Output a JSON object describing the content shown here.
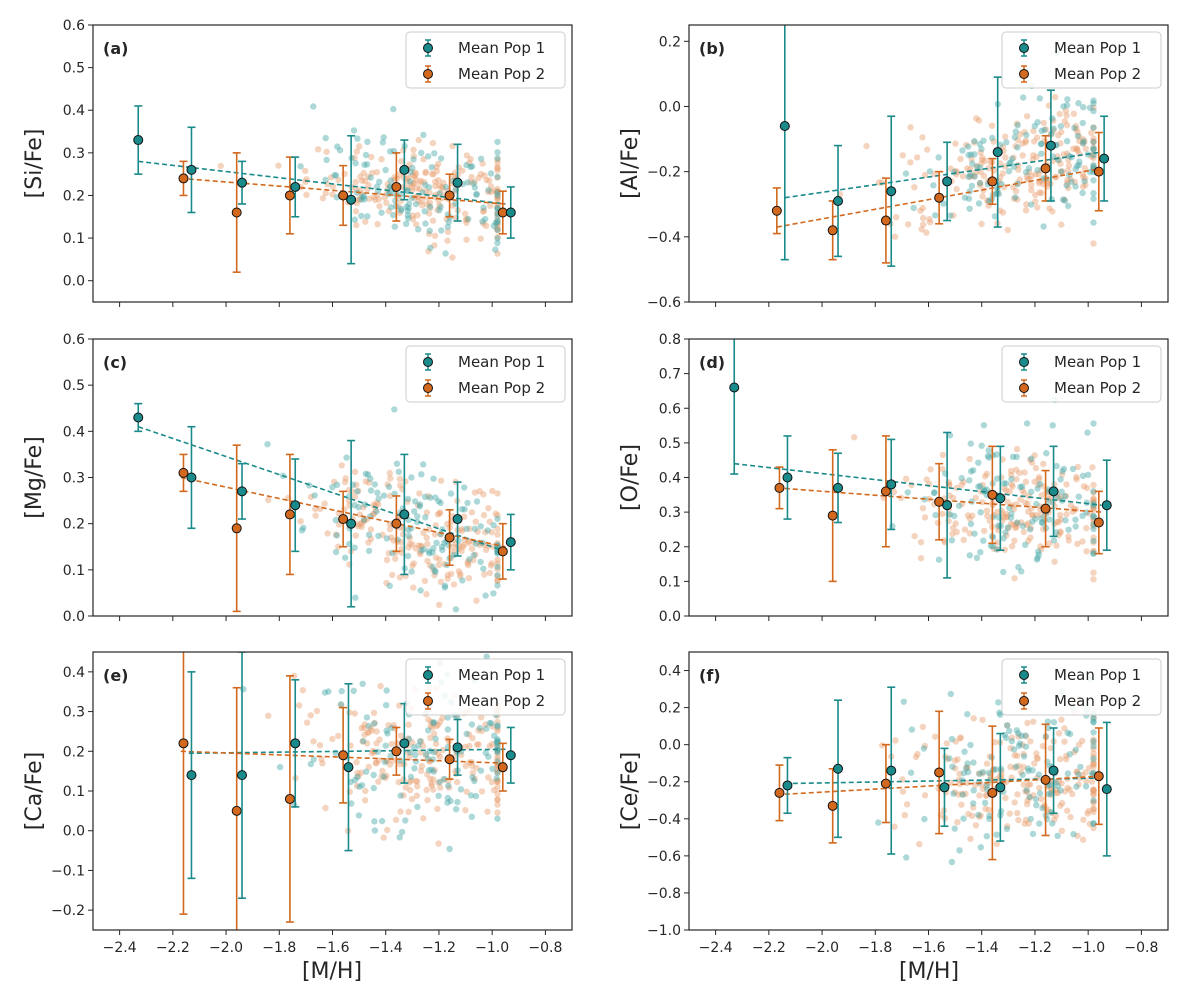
{
  "figure": {
    "xlabel": "[M/H]",
    "legend": [
      "Mean Pop 1",
      "Mean Pop 2"
    ],
    "colors": {
      "pop1": "#1a8a8a",
      "pop2": "#d2691e",
      "pop1_scatter": "#4aa8a8",
      "pop2_scatter": "#e8a070"
    }
  },
  "chart_data": [
    {
      "id": "a",
      "type": "scatter",
      "panel_tag": "(a)",
      "ylabel": "[Si/Fe]",
      "xlim": [
        -2.5,
        -0.7
      ],
      "ylim": [
        -0.05,
        0.6
      ],
      "xticks": [
        -2.4,
        -2.2,
        -2.0,
        -1.8,
        -1.6,
        -1.4,
        -1.2,
        -1.0,
        -0.8
      ],
      "yticks": [
        0.0,
        0.1,
        0.2,
        0.3,
        0.4,
        0.5,
        0.6
      ],
      "show_x_ticklabels": false,
      "legend_position": "top-right",
      "pop1": {
        "x": [
          -2.33,
          -2.13,
          -1.94,
          -1.74,
          -1.53,
          -1.33,
          -1.13,
          -0.93
        ],
        "y": [
          0.33,
          0.26,
          0.23,
          0.22,
          0.19,
          0.26,
          0.23,
          0.16
        ],
        "err": [
          0.08,
          0.1,
          0.05,
          0.07,
          0.15,
          0.07,
          0.09,
          0.06
        ]
      },
      "pop2": {
        "x": [
          -2.16,
          -1.96,
          -1.76,
          -1.56,
          -1.36,
          -1.16,
          -0.96
        ],
        "y": [
          0.24,
          0.16,
          0.2,
          0.2,
          0.22,
          0.2,
          0.16
        ],
        "err": [
          0.04,
          0.14,
          0.09,
          0.07,
          0.08,
          0.05,
          0.05
        ]
      },
      "trend1": {
        "x": [
          -2.33,
          -0.95
        ],
        "y": [
          0.28,
          0.18
        ]
      },
      "trend2": {
        "x": [
          -2.17,
          -0.95
        ],
        "y": [
          0.24,
          0.18
        ]
      },
      "scatter1": {
        "center": [
          0.24,
          0.0
        ],
        "slope": -0.07,
        "sd": 0.06
      },
      "scatter2": {
        "center": [
          0.23,
          0.0
        ],
        "slope": -0.05,
        "sd": 0.05
      }
    },
    {
      "id": "b",
      "type": "scatter",
      "panel_tag": "(b)",
      "ylabel": "[Al/Fe]",
      "xlim": [
        -2.5,
        -0.7
      ],
      "ylim": [
        -0.6,
        0.25
      ],
      "xticks": [
        -2.4,
        -2.2,
        -2.0,
        -1.8,
        -1.6,
        -1.4,
        -1.2,
        -1.0,
        -0.8
      ],
      "yticks": [
        -0.6,
        -0.4,
        -0.2,
        0.0,
        0.2
      ],
      "show_x_ticklabels": false,
      "legend_position": "top-right",
      "pop1": {
        "x": [
          -2.14,
          -1.94,
          -1.74,
          -1.53,
          -1.34,
          -1.14,
          -0.94
        ],
        "y": [
          -0.06,
          -0.29,
          -0.26,
          -0.23,
          -0.14,
          -0.12,
          -0.16
        ],
        "err": [
          0.41,
          0.17,
          0.23,
          0.12,
          0.23,
          0.17,
          0.13
        ]
      },
      "pop2": {
        "x": [
          -2.17,
          -1.96,
          -1.76,
          -1.56,
          -1.36,
          -1.16,
          -0.96
        ],
        "y": [
          -0.32,
          -0.38,
          -0.35,
          -0.28,
          -0.23,
          -0.19,
          -0.2
        ],
        "err": [
          0.07,
          0.09,
          0.13,
          0.08,
          0.07,
          0.1,
          0.12
        ]
      },
      "trend1": {
        "x": [
          -2.14,
          -0.95
        ],
        "y": [
          -0.28,
          -0.14
        ]
      },
      "trend2": {
        "x": [
          -2.17,
          -0.95
        ],
        "y": [
          -0.37,
          -0.19
        ]
      },
      "scatter1": {
        "center": [
          -0.22,
          0.0
        ],
        "slope": 0.12,
        "sd": 0.1
      },
      "scatter2": {
        "center": [
          -0.23,
          0.0
        ],
        "slope": 0.15,
        "sd": 0.08
      }
    },
    {
      "id": "c",
      "type": "scatter",
      "panel_tag": "(c)",
      "ylabel": "[Mg/Fe]",
      "xlim": [
        -2.5,
        -0.7
      ],
      "ylim": [
        0.0,
        0.6
      ],
      "xticks": [
        -2.4,
        -2.2,
        -2.0,
        -1.8,
        -1.6,
        -1.4,
        -1.2,
        -1.0,
        -0.8
      ],
      "yticks": [
        0.0,
        0.1,
        0.2,
        0.3,
        0.4,
        0.5,
        0.6
      ],
      "show_x_ticklabels": false,
      "legend_position": "top-right",
      "pop1": {
        "x": [
          -2.33,
          -2.13,
          -1.94,
          -1.74,
          -1.53,
          -1.33,
          -1.13,
          -0.93
        ],
        "y": [
          0.43,
          0.3,
          0.27,
          0.24,
          0.2,
          0.22,
          0.21,
          0.16
        ],
        "err": [
          0.03,
          0.11,
          0.06,
          0.1,
          0.18,
          0.13,
          0.08,
          0.06
        ]
      },
      "pop2": {
        "x": [
          -2.16,
          -1.96,
          -1.76,
          -1.56,
          -1.36,
          -1.16,
          -0.96
        ],
        "y": [
          0.31,
          0.19,
          0.22,
          0.21,
          0.2,
          0.17,
          0.14
        ],
        "err": [
          0.04,
          0.18,
          0.13,
          0.06,
          0.06,
          0.06,
          0.06
        ]
      },
      "trend1": {
        "x": [
          -2.33,
          -0.95
        ],
        "y": [
          0.41,
          0.14
        ]
      },
      "trend2": {
        "x": [
          -2.17,
          -0.95
        ],
        "y": [
          0.3,
          0.15
        ]
      },
      "scatter1": {
        "center": [
          0.24,
          0.0
        ],
        "slope": -0.15,
        "sd": 0.07
      },
      "scatter2": {
        "center": [
          0.22,
          0.0
        ],
        "slope": -0.12,
        "sd": 0.06
      }
    },
    {
      "id": "d",
      "type": "scatter",
      "panel_tag": "(d)",
      "ylabel": "[O/Fe]",
      "xlim": [
        -2.5,
        -0.7
      ],
      "ylim": [
        0.0,
        0.8
      ],
      "xticks": [
        -2.4,
        -2.2,
        -2.0,
        -1.8,
        -1.6,
        -1.4,
        -1.2,
        -1.0,
        -0.8
      ],
      "yticks": [
        0.0,
        0.1,
        0.2,
        0.3,
        0.4,
        0.5,
        0.6,
        0.7,
        0.8
      ],
      "show_x_ticklabels": false,
      "legend_position": "top-right",
      "pop1": {
        "x": [
          -2.33,
          -2.13,
          -1.94,
          -1.74,
          -1.53,
          -1.33,
          -1.13,
          -0.93
        ],
        "y": [
          0.66,
          0.4,
          0.37,
          0.38,
          0.32,
          0.34,
          0.36,
          0.32
        ],
        "err": [
          0.25,
          0.12,
          0.1,
          0.13,
          0.21,
          0.15,
          0.13,
          0.13
        ]
      },
      "pop2": {
        "x": [
          -2.16,
          -1.96,
          -1.76,
          -1.56,
          -1.36,
          -1.16,
          -0.96
        ],
        "y": [
          0.37,
          0.29,
          0.36,
          0.33,
          0.35,
          0.31,
          0.27
        ],
        "err": [
          0.06,
          0.19,
          0.16,
          0.11,
          0.14,
          0.11,
          0.09
        ]
      },
      "trend1": {
        "x": [
          -2.33,
          -0.95
        ],
        "y": [
          0.44,
          0.32
        ]
      },
      "trend2": {
        "x": [
          -2.17,
          -0.95
        ],
        "y": [
          0.37,
          0.3
        ]
      },
      "scatter1": {
        "center": [
          0.36,
          0.0
        ],
        "slope": -0.06,
        "sd": 0.11
      },
      "scatter2": {
        "center": [
          0.33,
          0.0
        ],
        "slope": -0.05,
        "sd": 0.08
      }
    },
    {
      "id": "e",
      "type": "scatter",
      "panel_tag": "(e)",
      "ylabel": "[Ca/Fe]",
      "xlim": [
        -2.5,
        -0.7
      ],
      "ylim": [
        -0.25,
        0.45
      ],
      "xticks": [
        -2.4,
        -2.2,
        -2.0,
        -1.8,
        -1.6,
        -1.4,
        -1.2,
        -1.0,
        -0.8
      ],
      "yticks": [
        -0.2,
        -0.1,
        0.0,
        0.1,
        0.2,
        0.3,
        0.4
      ],
      "xtick_labels": [
        "−2.4",
        "−2.2",
        "−2.0",
        "−1.8",
        "−1.6",
        "−1.4",
        "−1.2",
        "−1.0",
        "−0.8"
      ],
      "show_x_ticklabels": true,
      "legend_position": "top-right",
      "pop1": {
        "x": [
          -2.13,
          -1.94,
          -1.74,
          -1.54,
          -1.33,
          -1.13,
          -0.93
        ],
        "y": [
          0.14,
          0.14,
          0.22,
          0.16,
          0.22,
          0.21,
          0.19
        ],
        "err": [
          0.26,
          0.31,
          0.16,
          0.21,
          0.1,
          0.07,
          0.07
        ]
      },
      "pop2": {
        "x": [
          -2.16,
          -1.96,
          -1.76,
          -1.56,
          -1.36,
          -1.16,
          -0.96
        ],
        "y": [
          0.22,
          0.05,
          0.08,
          0.19,
          0.2,
          0.18,
          0.16
        ],
        "err": [
          0.43,
          0.31,
          0.31,
          0.12,
          0.06,
          0.05,
          0.06
        ]
      },
      "trend1": {
        "x": [
          -2.14,
          -0.95
        ],
        "y": [
          0.195,
          0.205
        ]
      },
      "trend2": {
        "x": [
          -2.17,
          -0.95
        ],
        "y": [
          0.2,
          0.17
        ]
      },
      "scatter1": {
        "center": [
          0.21,
          0.0
        ],
        "slope": 0.0,
        "sd": 0.1
      },
      "scatter2": {
        "center": [
          0.2,
          0.0
        ],
        "slope": -0.02,
        "sd": 0.08
      }
    },
    {
      "id": "f",
      "type": "scatter",
      "panel_tag": "(f)",
      "ylabel": "[Ce/Fe]",
      "xlim": [
        -2.5,
        -0.7
      ],
      "ylim": [
        -1.0,
        0.5
      ],
      "xticks": [
        -2.4,
        -2.2,
        -2.0,
        -1.8,
        -1.6,
        -1.4,
        -1.2,
        -1.0,
        -0.8
      ],
      "yticks": [
        -1.0,
        -0.8,
        -0.6,
        -0.4,
        -0.2,
        0.0,
        0.2,
        0.4
      ],
      "xtick_labels": [
        "−2.4",
        "−2.2",
        "−2.0",
        "−1.8",
        "−1.6",
        "−1.4",
        "−1.2",
        "−1.0",
        "−0.8"
      ],
      "show_x_ticklabels": true,
      "legend_position": "top-right",
      "pop1": {
        "x": [
          -2.13,
          -1.94,
          -1.74,
          -1.54,
          -1.33,
          -1.13,
          -0.93
        ],
        "y": [
          -0.22,
          -0.13,
          -0.14,
          -0.23,
          -0.23,
          -0.14,
          -0.24
        ],
        "err": [
          0.15,
          0.37,
          0.45,
          0.21,
          0.29,
          0.23,
          0.36
        ]
      },
      "pop2": {
        "x": [
          -2.16,
          -1.96,
          -1.76,
          -1.56,
          -1.36,
          -1.16,
          -0.96
        ],
        "y": [
          -0.26,
          -0.33,
          -0.21,
          -0.15,
          -0.26,
          -0.19,
          -0.17
        ],
        "err": [
          0.15,
          0.2,
          0.21,
          0.33,
          0.36,
          0.3,
          0.26
        ]
      },
      "trend1": {
        "x": [
          -2.14,
          -0.95
        ],
        "y": [
          -0.21,
          -0.18
        ]
      },
      "trend2": {
        "x": [
          -2.17,
          -0.95
        ],
        "y": [
          -0.27,
          -0.17
        ]
      },
      "scatter1": {
        "center": [
          -0.18,
          0.0
        ],
        "slope": 0.05,
        "sd": 0.2
      },
      "scatter2": {
        "center": [
          -0.2,
          0.0
        ],
        "slope": 0.05,
        "sd": 0.18
      }
    }
  ]
}
